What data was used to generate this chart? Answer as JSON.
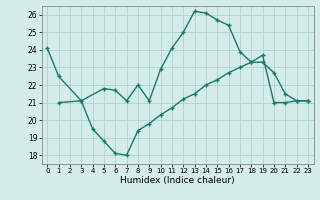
{
  "xlabel": "Humidex (Indice chaleur)",
  "bg_color": "#d4ecea",
  "line_color": "#1a7a6a",
  "grid_color": "#b0d4d0",
  "xlim": [
    -0.5,
    23.5
  ],
  "ylim": [
    17.5,
    26.5
  ],
  "xticks": [
    0,
    1,
    2,
    3,
    4,
    5,
    6,
    7,
    8,
    9,
    10,
    11,
    12,
    13,
    14,
    15,
    16,
    17,
    18,
    19,
    20,
    21,
    22,
    23
  ],
  "yticks": [
    18,
    19,
    20,
    21,
    22,
    23,
    24,
    25,
    26
  ],
  "line1_x": [
    0,
    1,
    3,
    5,
    6,
    7,
    8,
    9,
    10,
    11,
    12,
    13,
    14,
    15,
    16,
    17,
    18,
    19,
    20,
    21,
    22,
    23
  ],
  "line1_y": [
    24.1,
    22.5,
    21.1,
    21.8,
    21.7,
    21.1,
    22.0,
    21.1,
    22.9,
    24.1,
    25.0,
    26.2,
    26.1,
    25.7,
    25.4,
    23.9,
    23.3,
    23.3,
    22.7,
    21.5,
    21.1,
    21.1
  ],
  "line2_x": [
    1,
    3,
    4,
    5,
    6,
    7,
    8,
    9,
    10,
    11,
    12,
    13,
    14,
    15,
    16,
    17,
    18,
    19,
    20,
    21,
    22,
    23
  ],
  "line2_y": [
    21.0,
    21.1,
    19.5,
    18.8,
    18.1,
    18.0,
    19.4,
    19.8,
    20.3,
    20.7,
    21.2,
    21.5,
    22.0,
    22.3,
    22.7,
    23.0,
    23.3,
    23.7,
    21.0,
    21.0,
    21.1,
    21.1
  ]
}
